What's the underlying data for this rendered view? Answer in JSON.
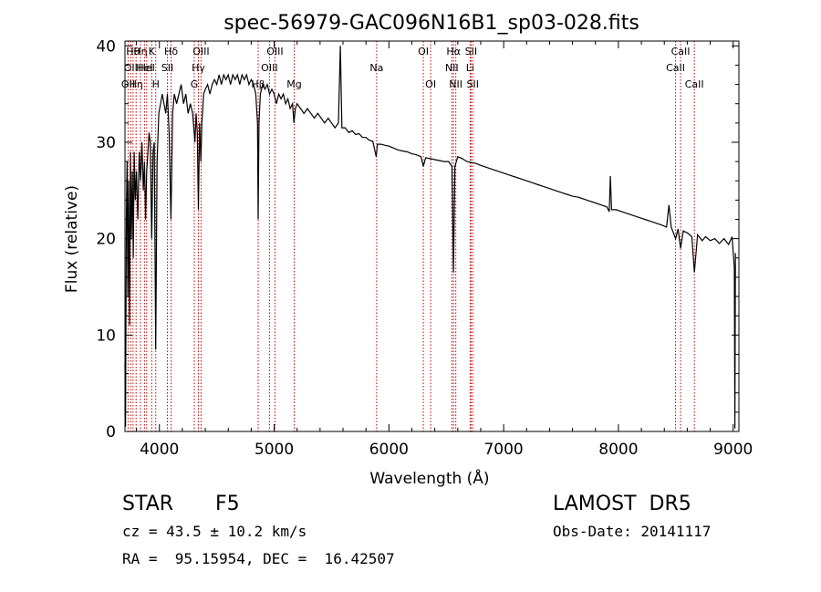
{
  "chart_data": {
    "type": "line",
    "title": "spec-56979-GAC096N16B1_sp03-028.fits",
    "xlabel": "Wavelength (Å)",
    "ylabel": "Flux (relative)",
    "xlim": [
      3700,
      9050
    ],
    "ylim": [
      0,
      40.5
    ],
    "xticks": [
      4000,
      5000,
      6000,
      7000,
      8000,
      9000
    ],
    "yticks": [
      0,
      10,
      20,
      30,
      40
    ],
    "grid": false,
    "series": [
      {
        "color": "#000000",
        "points": [
          [
            3700,
            7
          ],
          [
            3705,
            0.5
          ],
          [
            3712,
            22
          ],
          [
            3718,
            28
          ],
          [
            3725,
            14
          ],
          [
            3732,
            26
          ],
          [
            3740,
            11
          ],
          [
            3748,
            29
          ],
          [
            3756,
            20
          ],
          [
            3764,
            27
          ],
          [
            3772,
            18
          ],
          [
            3780,
            29
          ],
          [
            3790,
            24
          ],
          [
            3800,
            27
          ],
          [
            3812,
            22
          ],
          [
            3824,
            29
          ],
          [
            3836,
            26
          ],
          [
            3848,
            30
          ],
          [
            3860,
            25
          ],
          [
            3870,
            28
          ],
          [
            3880,
            22
          ],
          [
            3889,
            27
          ],
          [
            3900,
            29
          ],
          [
            3910,
            31
          ],
          [
            3920,
            30
          ],
          [
            3933,
            20
          ],
          [
            3945,
            29
          ],
          [
            3955,
            30
          ],
          [
            3968,
            8.5
          ],
          [
            3980,
            28
          ],
          [
            3995,
            33
          ],
          [
            4010,
            34
          ],
          [
            4025,
            35
          ],
          [
            4040,
            34
          ],
          [
            4055,
            33
          ],
          [
            4070,
            35
          ],
          [
            4085,
            31
          ],
          [
            4101,
            22
          ],
          [
            4115,
            33
          ],
          [
            4130,
            35
          ],
          [
            4150,
            34
          ],
          [
            4170,
            35
          ],
          [
            4190,
            36
          ],
          [
            4210,
            34
          ],
          [
            4230,
            35
          ],
          [
            4250,
            33
          ],
          [
            4270,
            34
          ],
          [
            4290,
            33
          ],
          [
            4310,
            30
          ],
          [
            4320,
            33
          ],
          [
            4330,
            31
          ],
          [
            4340,
            23
          ],
          [
            4350,
            32
          ],
          [
            4361,
            28
          ],
          [
            4370,
            32
          ],
          [
            4385,
            35
          ],
          [
            4400,
            35.5
          ],
          [
            4420,
            36
          ],
          [
            4440,
            35
          ],
          [
            4460,
            36
          ],
          [
            4480,
            36.5
          ],
          [
            4500,
            36
          ],
          [
            4520,
            37
          ],
          [
            4540,
            36
          ],
          [
            4560,
            37
          ],
          [
            4580,
            36.5
          ],
          [
            4600,
            37
          ],
          [
            4620,
            36
          ],
          [
            4640,
            37
          ],
          [
            4660,
            36.5
          ],
          [
            4680,
            37
          ],
          [
            4700,
            36
          ],
          [
            4720,
            37
          ],
          [
            4740,
            36.5
          ],
          [
            4760,
            37
          ],
          [
            4780,
            36
          ],
          [
            4800,
            36.5
          ],
          [
            4820,
            36
          ],
          [
            4840,
            35
          ],
          [
            4855,
            32
          ],
          [
            4861,
            22
          ],
          [
            4868,
            32
          ],
          [
            4880,
            35
          ],
          [
            4900,
            36
          ],
          [
            4920,
            35.5
          ],
          [
            4940,
            36
          ],
          [
            4960,
            35
          ],
          [
            4980,
            35.5
          ],
          [
            5000,
            35
          ],
          [
            5020,
            34
          ],
          [
            5040,
            35
          ],
          [
            5060,
            34.5
          ],
          [
            5080,
            35
          ],
          [
            5100,
            34
          ],
          [
            5120,
            34.5
          ],
          [
            5140,
            33.5
          ],
          [
            5160,
            34
          ],
          [
            5172,
            32
          ],
          [
            5185,
            33.5
          ],
          [
            5200,
            34
          ],
          [
            5230,
            33.5
          ],
          [
            5260,
            33
          ],
          [
            5290,
            33.5
          ],
          [
            5320,
            33
          ],
          [
            5350,
            32.5
          ],
          [
            5380,
            33
          ],
          [
            5410,
            32.5
          ],
          [
            5440,
            32
          ],
          [
            5470,
            32.5
          ],
          [
            5500,
            32
          ],
          [
            5530,
            31.5
          ],
          [
            5560,
            32
          ],
          [
            5577,
            40
          ],
          [
            5590,
            31.5
          ],
          [
            5620,
            31.5
          ],
          [
            5650,
            31
          ],
          [
            5680,
            31.2
          ],
          [
            5710,
            30.8
          ],
          [
            5740,
            30.9
          ],
          [
            5770,
            30.5
          ],
          [
            5800,
            30.5
          ],
          [
            5830,
            30.2
          ],
          [
            5860,
            30.1
          ],
          [
            5889,
            28.5
          ],
          [
            5900,
            29.8
          ],
          [
            5930,
            29.8
          ],
          [
            5960,
            29.7
          ],
          [
            6000,
            29.6
          ],
          [
            6040,
            29.4
          ],
          [
            6080,
            29.2
          ],
          [
            6120,
            29.1
          ],
          [
            6160,
            29.0
          ],
          [
            6200,
            28.8
          ],
          [
            6240,
            28.7
          ],
          [
            6280,
            28.5
          ],
          [
            6300,
            27.5
          ],
          [
            6320,
            28.4
          ],
          [
            6360,
            28.3
          ],
          [
            6400,
            28.2
          ],
          [
            6440,
            28.1
          ],
          [
            6480,
            28.0
          ],
          [
            6520,
            28.0
          ],
          [
            6550,
            27.5
          ],
          [
            6563,
            16.5
          ],
          [
            6575,
            27.5
          ],
          [
            6600,
            28.5
          ],
          [
            6640,
            28.3
          ],
          [
            6680,
            28.0
          ],
          [
            6720,
            27.9
          ],
          [
            6760,
            27.8
          ],
          [
            6800,
            27.6
          ],
          [
            6850,
            27.4
          ],
          [
            6900,
            27.2
          ],
          [
            6950,
            27.0
          ],
          [
            7000,
            26.8
          ],
          [
            7050,
            26.6
          ],
          [
            7100,
            26.4
          ],
          [
            7150,
            26.2
          ],
          [
            7200,
            26.0
          ],
          [
            7250,
            25.8
          ],
          [
            7300,
            25.6
          ],
          [
            7350,
            25.4
          ],
          [
            7400,
            25.2
          ],
          [
            7450,
            25.0
          ],
          [
            7500,
            24.8
          ],
          [
            7550,
            24.6
          ],
          [
            7600,
            24.4
          ],
          [
            7650,
            24.3
          ],
          [
            7700,
            24.1
          ],
          [
            7750,
            23.9
          ],
          [
            7800,
            23.7
          ],
          [
            7850,
            23.5
          ],
          [
            7900,
            23.3
          ],
          [
            7920,
            22.8
          ],
          [
            7930,
            26.5
          ],
          [
            7940,
            23.0
          ],
          [
            7980,
            23.0
          ],
          [
            8030,
            22.8
          ],
          [
            8080,
            22.6
          ],
          [
            8130,
            22.4
          ],
          [
            8180,
            22.2
          ],
          [
            8230,
            22.0
          ],
          [
            8280,
            21.8
          ],
          [
            8330,
            21.6
          ],
          [
            8380,
            21.4
          ],
          [
            8420,
            21.2
          ],
          [
            8440,
            23.5
          ],
          [
            8460,
            21.2
          ],
          [
            8498,
            20.0
          ],
          [
            8520,
            21.0
          ],
          [
            8542,
            19.0
          ],
          [
            8565,
            20.8
          ],
          [
            8600,
            20.6
          ],
          [
            8640,
            20.2
          ],
          [
            8662,
            16.5
          ],
          [
            8690,
            20.4
          ],
          [
            8730,
            19.8
          ],
          [
            8760,
            20.2
          ],
          [
            8800,
            19.8
          ],
          [
            8840,
            20.0
          ],
          [
            8880,
            19.5
          ],
          [
            8920,
            20.0
          ],
          [
            8960,
            19.4
          ],
          [
            8990,
            20.2
          ],
          [
            9010,
            17.0
          ],
          [
            9015,
            0.3
          ],
          [
            9020,
            18.5
          ]
        ]
      }
    ],
    "line_markers": [
      {
        "x": 3727,
        "label": "OII",
        "row": 2
      },
      {
        "x": 3750,
        "label": "OII",
        "row": 1
      },
      {
        "x": 3770,
        "label": "Hθ",
        "row": 0
      },
      {
        "x": 3797,
        "label": "Hη",
        "row": 2
      },
      {
        "x": 3835,
        "label": "Hη",
        "row": 0
      },
      {
        "x": 3870,
        "label": "HeI",
        "row": 1
      },
      {
        "x": 3889,
        "label": "HeI",
        "row": 1
      },
      {
        "x": 3933,
        "label": "K",
        "row": 0
      },
      {
        "x": 3968,
        "label": "H",
        "row": 2
      },
      {
        "x": 4070,
        "label": "SII",
        "row": 1
      },
      {
        "x": 4102,
        "label": "Hδ",
        "row": 0
      },
      {
        "x": 4304,
        "label": "G",
        "row": 2
      },
      {
        "x": 4340,
        "label": "Hγ",
        "row": 1
      },
      {
        "x": 4363,
        "label": "OIII",
        "row": 0
      },
      {
        "x": 4861,
        "label": "Hβ",
        "row": 2
      },
      {
        "x": 4959,
        "label": "OIII",
        "row": 1
      },
      {
        "x": 5007,
        "label": "OIII",
        "row": 0
      },
      {
        "x": 5175,
        "label": "Mg",
        "row": 2
      },
      {
        "x": 5893,
        "label": "Na",
        "row": 1
      },
      {
        "x": 6300,
        "label": "OI",
        "row": 0
      },
      {
        "x": 6364,
        "label": "OI",
        "row": 2
      },
      {
        "x": 6548,
        "label": "NII",
        "row": 1
      },
      {
        "x": 6563,
        "label": "Hα",
        "row": 0
      },
      {
        "x": 6583,
        "label": "NII",
        "row": 2
      },
      {
        "x": 6708,
        "label": "Li",
        "row": 1
      },
      {
        "x": 6716,
        "label": "SII",
        "row": 0
      },
      {
        "x": 6731,
        "label": "SII",
        "row": 2
      },
      {
        "x": 8498,
        "label": "CaII",
        "row": 1
      },
      {
        "x": 8542,
        "label": "CaII",
        "row": 0
      },
      {
        "x": 8662,
        "label": "CaII",
        "row": 2
      }
    ],
    "marker_color": "#c00000"
  },
  "info": {
    "class": "STAR",
    "subclass": "F5",
    "survey": "LAMOST  DR5",
    "cz": "cz = 43.5 ± 10.2 km/s",
    "obs_date": "Obs-Date: 20141117",
    "coords": "RA =  95.15954, DEC =  16.42507"
  }
}
